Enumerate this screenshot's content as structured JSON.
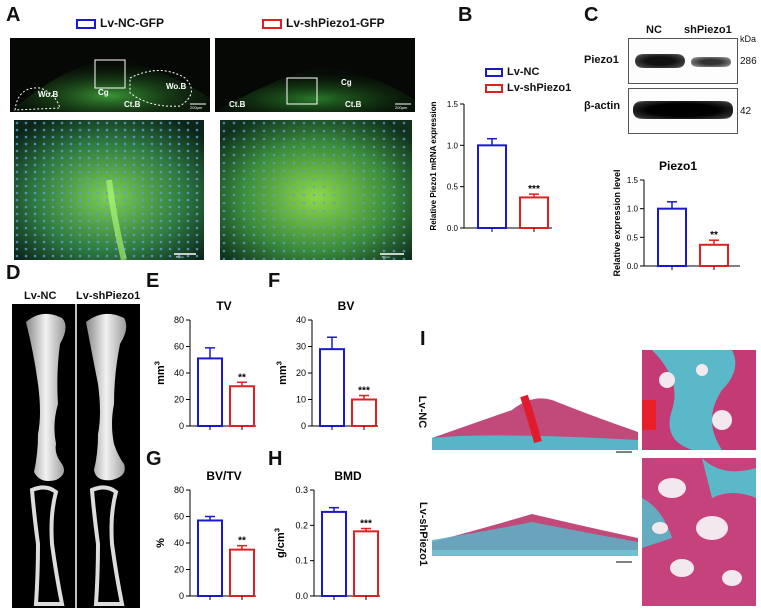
{
  "panels": {
    "A": "A",
    "B": "B",
    "C": "C",
    "D": "D",
    "E": "E",
    "F": "F",
    "G": "G",
    "H": "H",
    "I": "I"
  },
  "colors": {
    "nc": "#1a1acc",
    "sh": "#e02020"
  },
  "panelA": {
    "legend_nc": "Lv-NC-GFP",
    "legend_sh": "Lv-shPiezo1-GFP",
    "labels_left": [
      "Wo.B",
      "Cg",
      "Wo.B",
      "Ct.B"
    ],
    "labels_right": [
      "Cg",
      "Ct.B",
      "Ct.B"
    ],
    "scale_top": "200μm",
    "scale_bottom": "50μm"
  },
  "panelB": {
    "legend_nc": "Lv-NC",
    "legend_sh": "Lv-shPiezo1",
    "chart_data": {
      "type": "bar",
      "categories": [
        "Lv-NC",
        "Lv-shPiezo1"
      ],
      "values": [
        1.0,
        0.37
      ],
      "errors": [
        0.08,
        0.04
      ],
      "ylabel": "Relative Piezo1 mRNA expression",
      "ylim": [
        0,
        1.5
      ],
      "yticks": [
        "0.0",
        "0.5",
        "1.0",
        "1.5"
      ],
      "annotation": "***"
    }
  },
  "panelC": {
    "col_nc": "NC",
    "col_sh": "shPiezo1",
    "kda": "kDa",
    "row1": "Piezo1",
    "row2": "β-actin",
    "mw1": "286",
    "mw2": "42",
    "chart_data": {
      "type": "bar",
      "title": "Piezo1",
      "categories": [
        "NC",
        "shPiezo1"
      ],
      "values": [
        1.0,
        0.37
      ],
      "errors": [
        0.12,
        0.08
      ],
      "ylabel": "Relative expression level",
      "ylim": [
        0,
        1.5
      ],
      "yticks": [
        "0.0",
        "0.5",
        "1.0",
        "1.5"
      ],
      "annotation": "**"
    }
  },
  "panelD": {
    "label_nc": "Lv-NC",
    "label_sh": "Lv-shPiezo1"
  },
  "panelE": {
    "chart_data": {
      "type": "bar",
      "title": "TV",
      "categories": [
        "Lv-NC",
        "Lv-shPiezo1"
      ],
      "values": [
        51,
        30
      ],
      "errors": [
        8,
        3
      ],
      "ylabel": "mm3",
      "ylim": [
        0,
        80
      ],
      "yticks": [
        "0",
        "20",
        "40",
        "60",
        "80"
      ],
      "annotation": "**"
    }
  },
  "panelF": {
    "chart_data": {
      "type": "bar",
      "title": "BV",
      "categories": [
        "Lv-NC",
        "Lv-shPiezo1"
      ],
      "values": [
        29,
        10
      ],
      "errors": [
        4.5,
        1.5
      ],
      "ylabel": "mm3",
      "ylim": [
        0,
        40
      ],
      "yticks": [
        "0",
        "10",
        "20",
        "30",
        "40"
      ],
      "annotation": "***"
    }
  },
  "panelG": {
    "chart_data": {
      "type": "bar",
      "title": "BV/TV",
      "categories": [
        "Lv-NC",
        "Lv-shPiezo1"
      ],
      "values": [
        57,
        35
      ],
      "errors": [
        3,
        3
      ],
      "ylabel": "%",
      "ylim": [
        0,
        80
      ],
      "yticks": [
        "0",
        "20",
        "40",
        "60",
        "80"
      ],
      "annotation": "**"
    }
  },
  "panelH": {
    "chart_data": {
      "type": "bar",
      "title": "BMD",
      "categories": [
        "Lv-NC",
        "Lv-shPiezo1"
      ],
      "values": [
        0.238,
        0.183
      ],
      "errors": [
        0.012,
        0.008
      ],
      "ylabel": "g/cm3",
      "ylim": [
        0,
        0.3
      ],
      "yticks": [
        "0.0",
        "0.1",
        "0.2",
        "0.3"
      ],
      "annotation": "***"
    }
  },
  "panelI": {
    "row1": "Lv-NC",
    "row2": "Lv-shPiezo1"
  }
}
